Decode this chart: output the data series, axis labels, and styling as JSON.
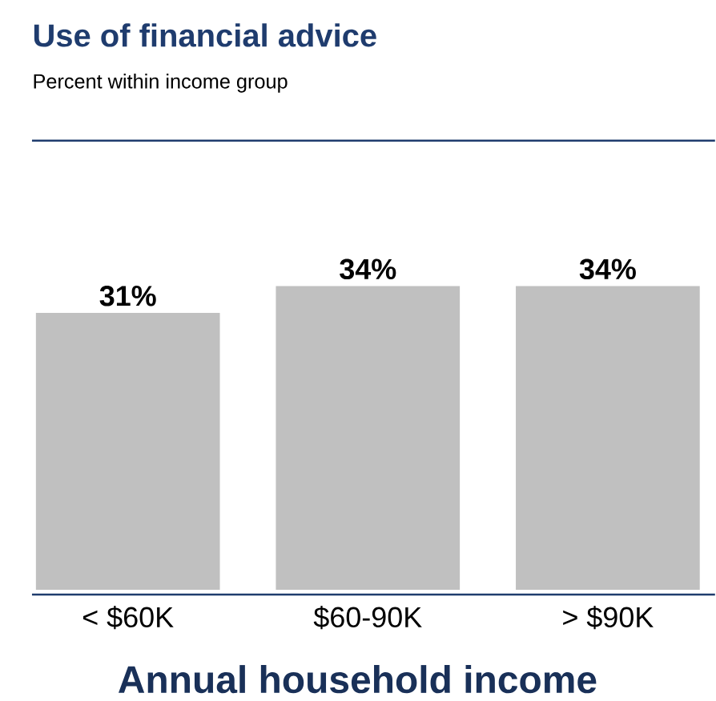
{
  "chart_data": {
    "type": "bar",
    "title": "Use of financial advice",
    "subtitle": "Percent within income group",
    "xlabel": "Annual household income",
    "categories": [
      "< $60K",
      "$60-90K",
      "> $90K"
    ],
    "values": [
      31,
      34,
      34
    ],
    "color": "#c0c0c0",
    "value_labels": [
      "31%",
      "34%",
      "34%"
    ]
  }
}
